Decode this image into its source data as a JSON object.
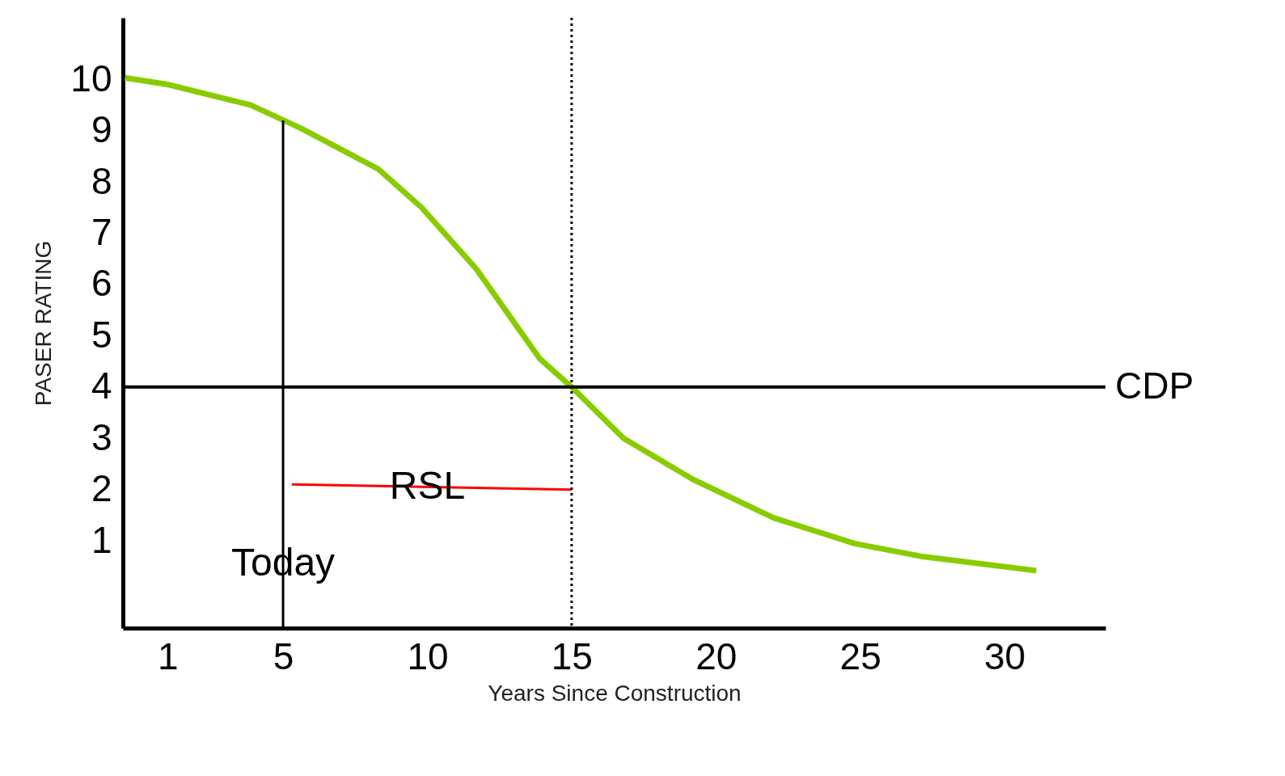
{
  "chart_data": {
    "type": "line",
    "xlabel": "Years Since Construction",
    "ylabel": "PASER RATING",
    "xlim": [
      -0.55,
      33.5
    ],
    "ylim": [
      -0.7,
      11.2
    ],
    "xticks": [
      1,
      5,
      10,
      15,
      20,
      25,
      30
    ],
    "yticks": [
      1,
      2,
      3,
      4,
      5,
      6,
      7,
      8,
      9,
      10
    ],
    "grid": false,
    "series": [
      {
        "color": "#88cc00",
        "x": [
          -0.48,
          1,
          3.87,
          5.6,
          8.3,
          9.8,
          11.7,
          13.9,
          15,
          16.8,
          19.2,
          22,
          24.8,
          27.1,
          31.1
        ],
        "values": [
          10.03,
          9.9,
          9.5,
          9.05,
          8.25,
          7.5,
          6.3,
          4.55,
          4.0,
          3.0,
          2.2,
          1.45,
          0.95,
          0.7,
          0.42
        ]
      },
      {
        "color": "#000000",
        "x": [
          5,
          5
        ],
        "values": [
          -0.7,
          9.2
        ]
      },
      {
        "color": "#ff0000",
        "x": [
          5.3,
          15
        ],
        "values": [
          2.1,
          2.0
        ]
      }
    ],
    "ref_lines": [
      {
        "axis": "y",
        "value": 4,
        "label": "CDP",
        "color": "#000000",
        "line_style": "solid"
      },
      {
        "axis": "x",
        "value": 15,
        "color": "#000000",
        "line_style": "dotted"
      }
    ],
    "annotations": [
      {
        "text": "Today",
        "x": 5,
        "y": 0.55
      },
      {
        "text": "RSL",
        "x": 10,
        "y": 2.05
      }
    ]
  }
}
